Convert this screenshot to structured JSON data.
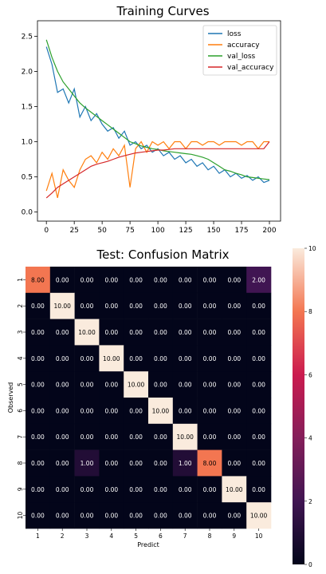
{
  "chart_data": [
    {
      "type": "line",
      "title": "Training Curves",
      "xlabel": "",
      "ylabel": "",
      "xlim": [
        -8,
        210
      ],
      "ylim": [
        -0.13,
        2.72
      ],
      "x_ticks": [
        "0",
        "25",
        "50",
        "75",
        "100",
        "125",
        "150",
        "175",
        "200"
      ],
      "y_ticks": [
        "0.0",
        "0.5",
        "1.0",
        "1.5",
        "2.0",
        "2.5"
      ],
      "grid": false,
      "legend_position": "top-right",
      "x": [
        0,
        5,
        10,
        15,
        20,
        25,
        30,
        35,
        40,
        45,
        50,
        55,
        60,
        65,
        70,
        75,
        80,
        85,
        90,
        95,
        100,
        105,
        110,
        115,
        120,
        125,
        130,
        135,
        140,
        145,
        150,
        155,
        160,
        165,
        170,
        175,
        180,
        185,
        190,
        195,
        200
      ],
      "series": [
        {
          "name": "loss",
          "color": "#1f77b4",
          "values": [
            2.35,
            2.1,
            1.7,
            1.75,
            1.55,
            1.75,
            1.35,
            1.5,
            1.3,
            1.4,
            1.25,
            1.15,
            1.2,
            1.05,
            1.15,
            0.95,
            1.0,
            0.9,
            0.95,
            0.85,
            0.9,
            0.8,
            0.85,
            0.75,
            0.8,
            0.7,
            0.75,
            0.65,
            0.7,
            0.6,
            0.65,
            0.55,
            0.6,
            0.5,
            0.55,
            0.48,
            0.52,
            0.45,
            0.5,
            0.42,
            0.45
          ]
        },
        {
          "name": "accuracy",
          "color": "#ff7f0e",
          "values": [
            0.3,
            0.55,
            0.2,
            0.6,
            0.45,
            0.35,
            0.6,
            0.75,
            0.8,
            0.7,
            0.85,
            0.75,
            0.9,
            0.8,
            0.95,
            0.35,
            0.9,
            1.0,
            0.85,
            1.0,
            0.95,
            1.0,
            0.9,
            1.0,
            1.0,
            0.9,
            1.0,
            1.0,
            0.95,
            1.0,
            1.0,
            0.95,
            1.0,
            1.0,
            1.0,
            0.95,
            1.0,
            1.0,
            0.9,
            1.0,
            1.0
          ]
        },
        {
          "name": "val_loss",
          "color": "#2ca02c",
          "values": [
            2.45,
            2.2,
            2.0,
            1.85,
            1.75,
            1.65,
            1.55,
            1.48,
            1.42,
            1.36,
            1.3,
            1.24,
            1.18,
            1.12,
            1.06,
            1.0,
            0.97,
            0.94,
            0.92,
            0.9,
            0.89,
            0.87,
            0.86,
            0.85,
            0.84,
            0.83,
            0.82,
            0.8,
            0.78,
            0.75,
            0.7,
            0.65,
            0.6,
            0.58,
            0.55,
            0.53,
            0.5,
            0.49,
            0.48,
            0.47,
            0.46
          ]
        },
        {
          "name": "val_accuracy",
          "color": "#d62728",
          "values": [
            0.2,
            0.27,
            0.35,
            0.4,
            0.45,
            0.5,
            0.55,
            0.6,
            0.65,
            0.68,
            0.7,
            0.72,
            0.75,
            0.78,
            0.8,
            0.82,
            0.84,
            0.85,
            0.86,
            0.87,
            0.88,
            0.88,
            0.89,
            0.9,
            0.9,
            0.9,
            0.9,
            0.9,
            0.9,
            0.9,
            0.9,
            0.9,
            0.9,
            0.9,
            0.9,
            0.9,
            0.9,
            0.9,
            0.9,
            0.9,
            1.0
          ]
        }
      ]
    },
    {
      "type": "heatmap",
      "title": "Test: Confusion Matrix",
      "xlabel": "Predict",
      "ylabel": "Observed",
      "x_categories": [
        "1",
        "2",
        "3",
        "4",
        "5",
        "6",
        "7",
        "8",
        "9",
        "10"
      ],
      "y_categories": [
        "1",
        "2",
        "3",
        "4",
        "5",
        "6",
        "7",
        "8",
        "9",
        "10"
      ],
      "colorbar_ticks": [
        "0",
        "2",
        "4",
        "6",
        "8",
        "10"
      ],
      "vmin": 0,
      "vmax": 10,
      "values": [
        [
          8,
          0,
          0,
          0,
          0,
          0,
          0,
          0,
          0,
          2
        ],
        [
          0,
          10,
          0,
          0,
          0,
          0,
          0,
          0,
          0,
          0
        ],
        [
          0,
          0,
          10,
          0,
          0,
          0,
          0,
          0,
          0,
          0
        ],
        [
          0,
          0,
          0,
          10,
          0,
          0,
          0,
          0,
          0,
          0
        ],
        [
          0,
          0,
          0,
          0,
          10,
          0,
          0,
          0,
          0,
          0
        ],
        [
          0,
          0,
          0,
          0,
          0,
          10,
          0,
          0,
          0,
          0
        ],
        [
          0,
          0,
          0,
          0,
          0,
          0,
          10,
          0,
          0,
          0
        ],
        [
          0,
          0,
          1,
          0,
          0,
          0,
          1,
          8,
          0,
          0
        ],
        [
          0,
          0,
          0,
          0,
          0,
          0,
          0,
          0,
          10,
          0
        ],
        [
          0,
          0,
          0,
          0,
          0,
          0,
          0,
          0,
          0,
          10
        ]
      ],
      "cell_labels": [
        [
          "8.00",
          "0.00",
          "0.00",
          "0.00",
          "0.00",
          "0.00",
          "0.00",
          "0.00",
          "0.00",
          "2.00"
        ],
        [
          "0.00",
          "10.00",
          "0.00",
          "0.00",
          "0.00",
          "0.00",
          "0.00",
          "0.00",
          "0.00",
          "0.00"
        ],
        [
          "0.00",
          "0.00",
          "10.00",
          "0.00",
          "0.00",
          "0.00",
          "0.00",
          "0.00",
          "0.00",
          "0.00"
        ],
        [
          "0.00",
          "0.00",
          "0.00",
          "10.00",
          "0.00",
          "0.00",
          "0.00",
          "0.00",
          "0.00",
          "0.00"
        ],
        [
          "0.00",
          "0.00",
          "0.00",
          "0.00",
          "10.00",
          "0.00",
          "0.00",
          "0.00",
          "0.00",
          "0.00"
        ],
        [
          "0.00",
          "0.00",
          "0.00",
          "0.00",
          "0.00",
          "10.00",
          "0.00",
          "0.00",
          "0.00",
          "0.00"
        ],
        [
          "0.00",
          "0.00",
          "0.00",
          "0.00",
          "0.00",
          "0.00",
          "10.00",
          "0.00",
          "0.00",
          "0.00"
        ],
        [
          "0.00",
          "0.00",
          "1.00",
          "0.00",
          "0.00",
          "0.00",
          "1.00",
          "8.00",
          "0.00",
          "0.00"
        ],
        [
          "0.00",
          "0.00",
          "0.00",
          "0.00",
          "0.00",
          "0.00",
          "0.00",
          "0.00",
          "10.00",
          "0.00"
        ],
        [
          "0.00",
          "0.00",
          "0.00",
          "0.00",
          "0.00",
          "0.00",
          "0.00",
          "0.00",
          "0.00",
          "10.00"
        ]
      ]
    }
  ]
}
